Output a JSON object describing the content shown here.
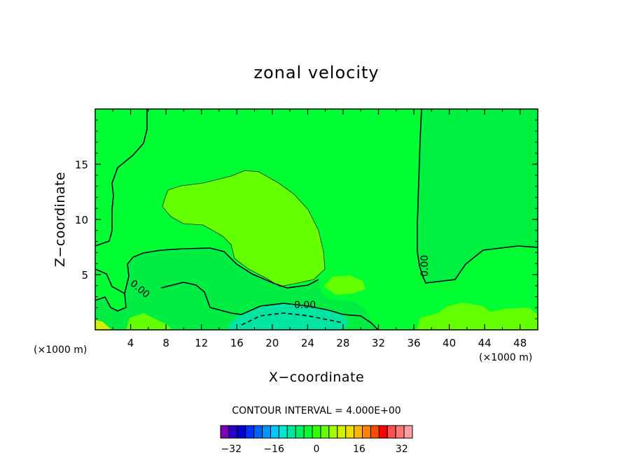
{
  "chart_data": {
    "type": "heatmap",
    "title": "zonal velocity",
    "xlabel": "X−coordinate",
    "ylabel": "Z−coordinate",
    "x_unit": "(×1000 m)",
    "z_unit": "(×1000 m)",
    "xlim": [
      0,
      50
    ],
    "zlim": [
      0,
      20
    ],
    "x_ticks": [
      4,
      8,
      12,
      16,
      20,
      24,
      28,
      32,
      36,
      40,
      44,
      48
    ],
    "x_tick_labels": [
      "4",
      "8",
      "12",
      "16",
      "20",
      "24",
      "28",
      "32",
      "36",
      "40",
      "44",
      "48"
    ],
    "z_ticks": [
      5,
      10,
      15
    ],
    "z_tick_labels": [
      "5",
      "10",
      "15"
    ],
    "contour_interval_text": "CONTOUR INTERVAL = 4.000E+00",
    "contour_interval": 4,
    "zero_contour_label": "0.00",
    "colorbar": {
      "range": [
        -36,
        36
      ],
      "colors": [
        "#7b00b4",
        "#2800c8",
        "#0000c8",
        "#0032ff",
        "#0064ff",
        "#0096ff",
        "#00c8ff",
        "#00e6d2",
        "#00e6a0",
        "#00f064",
        "#00ff32",
        "#32ff00",
        "#64ff00",
        "#a0ff00",
        "#d2f000",
        "#f0dc00",
        "#ffb400",
        "#ff8200",
        "#ff4b00",
        "#ff0000",
        "#ff5050",
        "#ff7878",
        "#ffa0a0"
      ],
      "tick_values": [
        -32,
        -16,
        0,
        16,
        32
      ],
      "tick_labels": [
        "−32",
        "−16",
        "0",
        "16",
        "32"
      ]
    },
    "field_regions": [
      {
        "name": "background",
        "value_bin": [
          0,
          4
        ],
        "color": "#00ff32"
      },
      {
        "name": "positive-right",
        "value_bin": [
          -4,
          0
        ],
        "color": "#00f040"
      },
      {
        "name": "positive-mid",
        "value_bin": [
          4,
          8
        ],
        "color": "#64ff00"
      },
      {
        "name": "negative-low",
        "value_bin": [
          -4,
          0
        ],
        "color": "#00ee44"
      },
      {
        "name": "negative-core",
        "value_bin": [
          -12,
          -8
        ],
        "color": "#00e6a0"
      },
      {
        "name": "surface-bottom-left",
        "value_bin": [
          8,
          12
        ],
        "color": "#d2f000"
      }
    ]
  }
}
